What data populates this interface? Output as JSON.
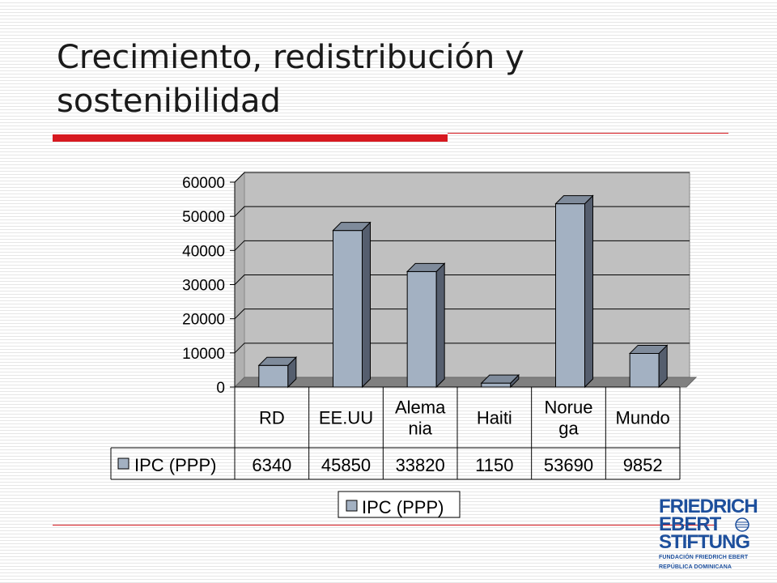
{
  "slide": {
    "title": "Crecimiento, redistribución y sostenibilidad"
  },
  "chart_data": {
    "type": "bar",
    "categories": [
      "RD",
      "EE.UU",
      "Alemania",
      "Haiti",
      "Noruega",
      "Mundo"
    ],
    "category_labels": [
      [
        "RD"
      ],
      [
        "EE.UU"
      ],
      [
        "Alema",
        "nia"
      ],
      [
        "Haiti"
      ],
      [
        "Norue",
        "ga"
      ],
      [
        "Mundo"
      ]
    ],
    "series": [
      {
        "name": "IPC (PPP)",
        "values": [
          6340,
          45850,
          33820,
          1150,
          53690,
          9852
        ]
      }
    ],
    "value_labels": [
      "6340",
      "45850",
      "33820",
      "1150",
      "53690",
      "9852"
    ],
    "y_ticks": [
      "0",
      "10000",
      "20000",
      "30000",
      "40000",
      "50000",
      "60000"
    ],
    "ylim": [
      0,
      60000
    ],
    "grid": true,
    "data_table": true,
    "legend": {
      "position": "bottom",
      "label": "IPC (PPP)"
    },
    "colors": {
      "bar_front": "#a3b1c2",
      "bar_side": "#555e6e",
      "bar_top": "#7f8b9b",
      "plot_wall": "#c0c0c0",
      "floor": "#808080",
      "legend_key": "#a3b1c2"
    }
  },
  "logo": {
    "lines": [
      "FRIEDRICH",
      "EBERT",
      "STIFTUNG"
    ],
    "subtitle_lines": [
      "FUNDACIÓN FRIEDRICH EBERT",
      "REPÚBLICA DOMINICANA"
    ],
    "color": "#1d4f9c"
  }
}
